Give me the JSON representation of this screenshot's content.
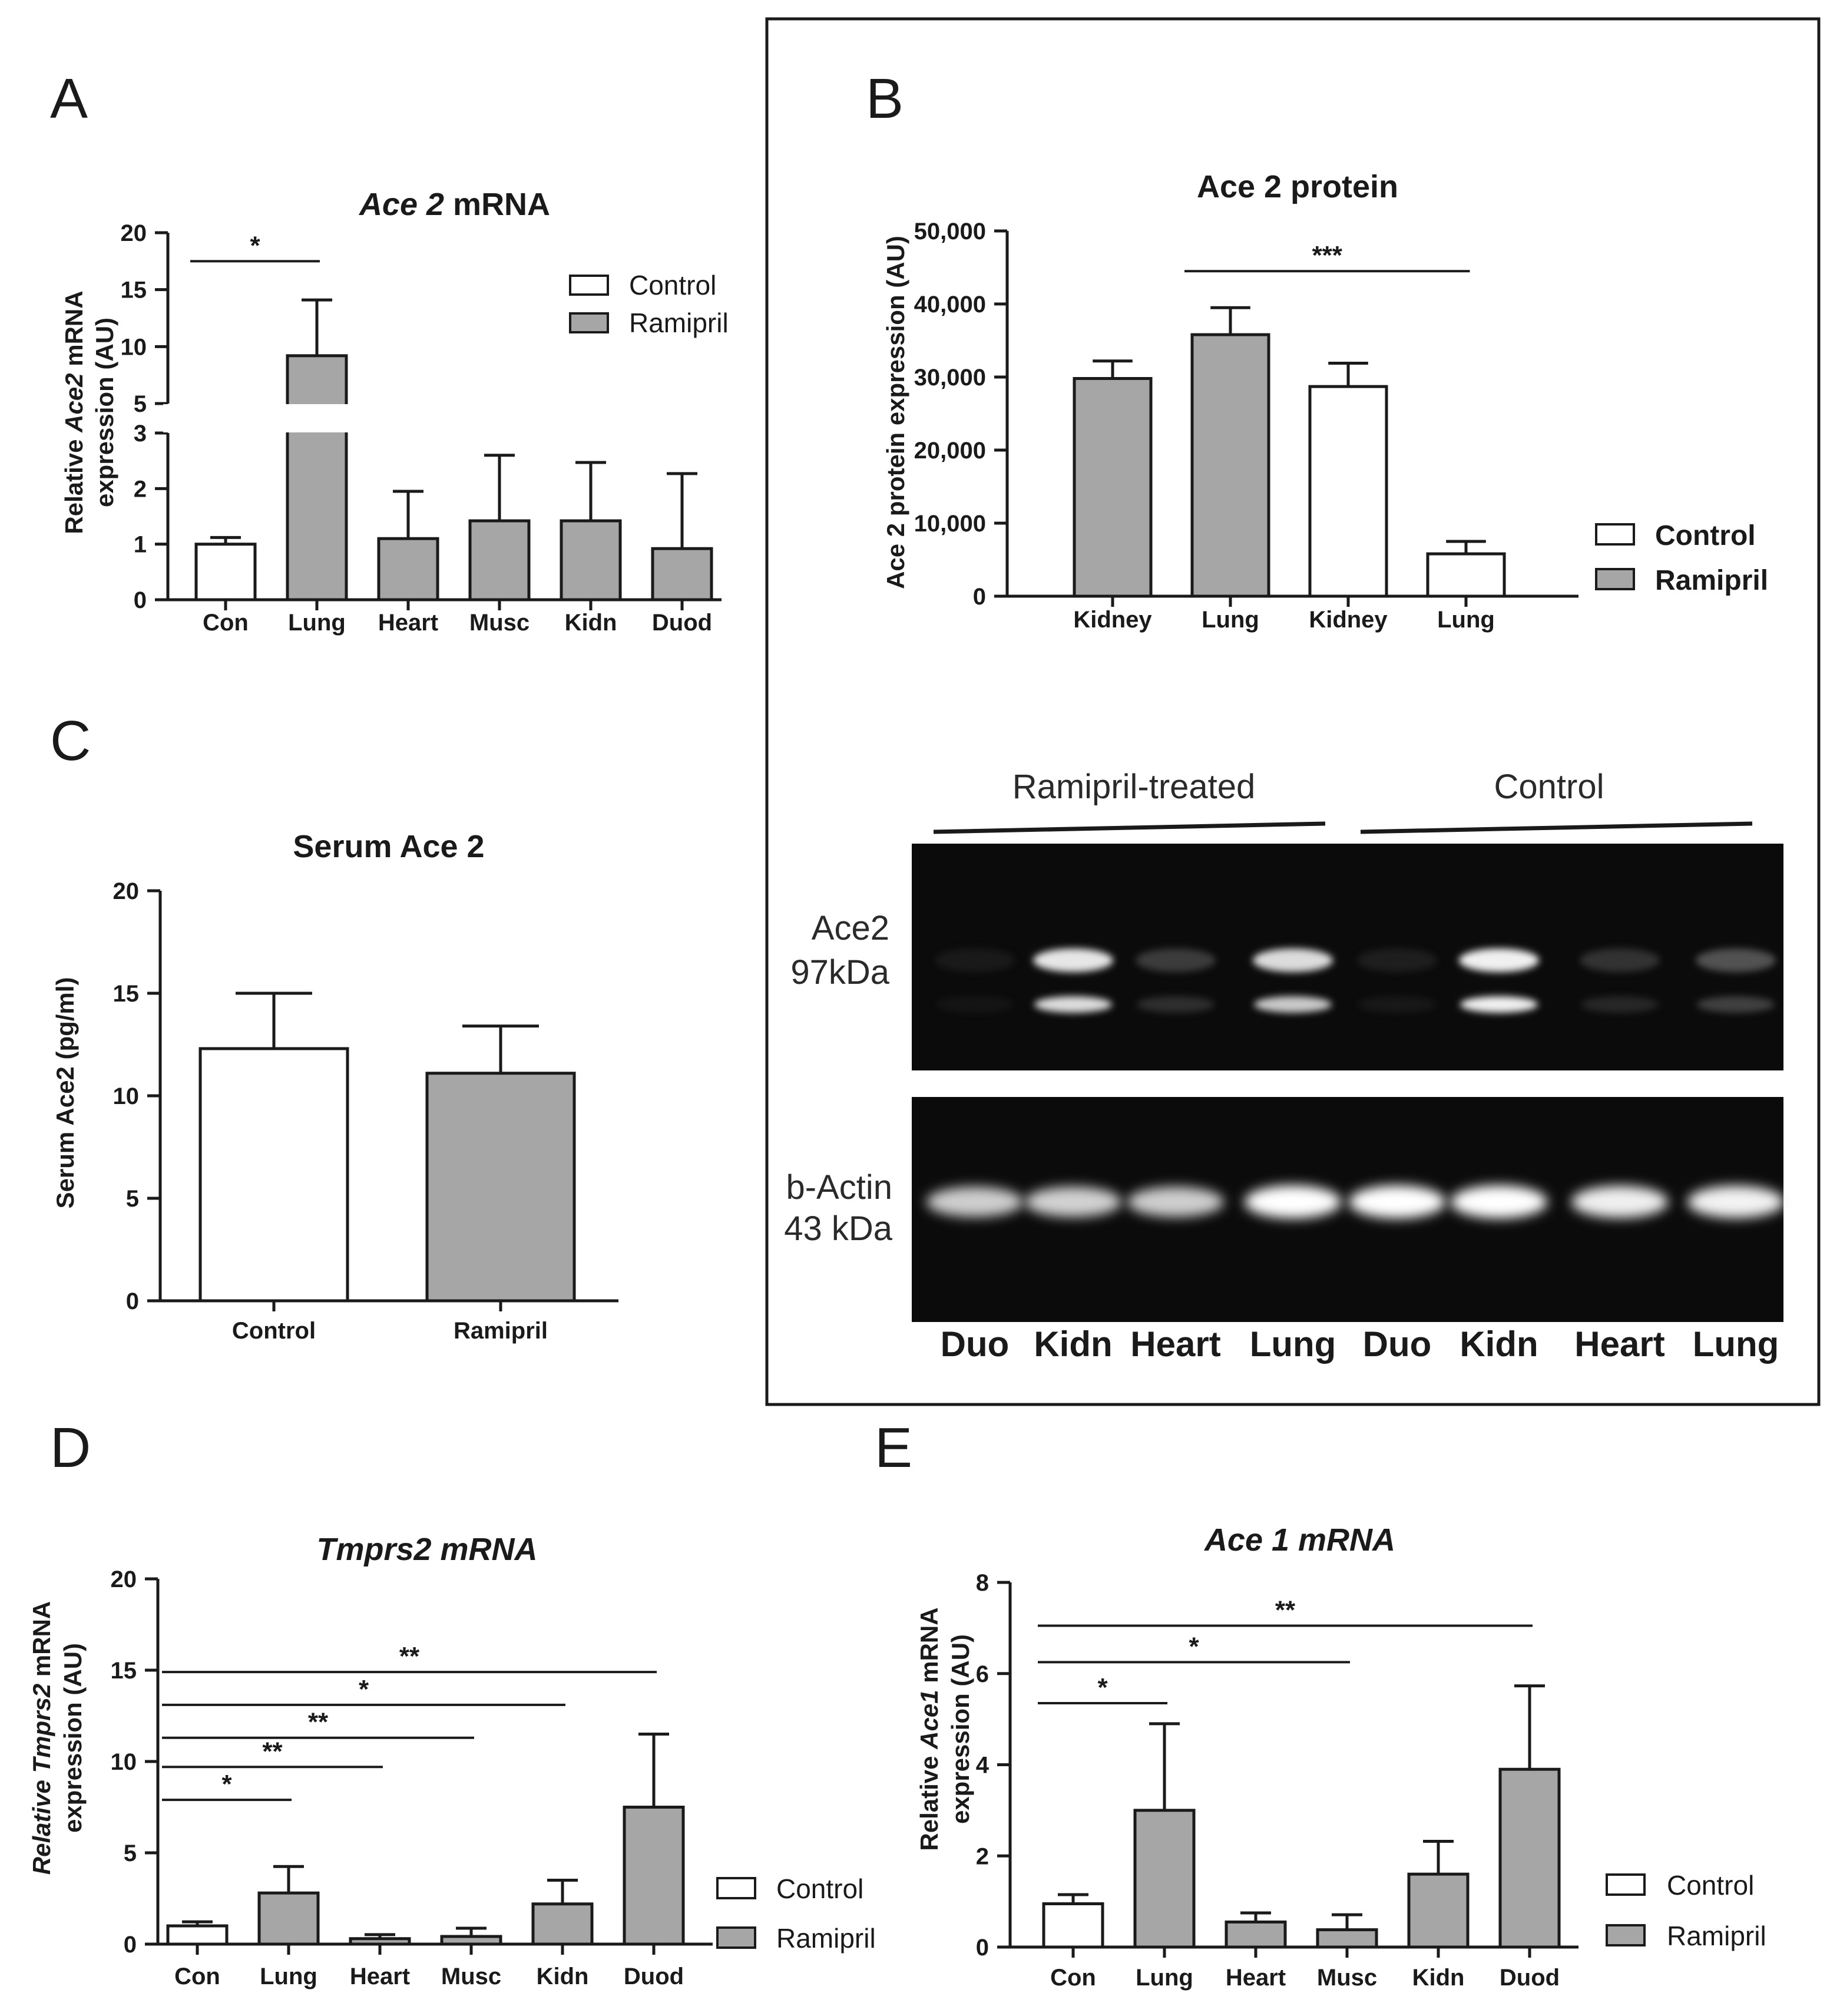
{
  "panels": {
    "A": "A",
    "B": "B",
    "C": "C",
    "D": "D",
    "E": "E"
  },
  "legend": {
    "control": "Control",
    "ramipril": "Ramipril"
  },
  "colors": {
    "control": "#ffffff",
    "ramipril": "#a6a6a6",
    "outline": "#1a1a1a",
    "blot_bg": "#0b0b0b"
  },
  "chart_data": [
    {
      "panel": "A",
      "type": "bar",
      "title_italic": "Ace 2",
      "title_rest": " mRNA",
      "ylabel_pre": "Relative ",
      "ylabel_italic": "Ace2",
      "ylabel_post": " mRNA",
      "ylabel_line2": "expression (AU)",
      "categories": [
        "Con",
        "Lung",
        "Heart",
        "Musc",
        "Kidn",
        "Duod"
      ],
      "groups": [
        "control",
        "ramipril",
        "ramipril",
        "ramipril",
        "ramipril",
        "ramipril"
      ],
      "values": [
        1.0,
        9.2,
        1.1,
        1.42,
        1.42,
        0.92
      ],
      "errors": [
        0.12,
        4.9,
        0.85,
        1.18,
        1.05,
        1.35
      ],
      "axis_break": {
        "lower": [
          0,
          3
        ],
        "upper": [
          5,
          20
        ]
      },
      "yticks_lower": [
        "0",
        "1",
        "2",
        "3"
      ],
      "yticks_upper": [
        "5",
        "10",
        "15",
        "20"
      ],
      "significance": [
        {
          "from": 0,
          "to": 1,
          "at": 17.5,
          "label": "*"
        }
      ]
    },
    {
      "panel": "B",
      "type": "bar",
      "title": "Ace 2 protein",
      "ylabel": "Ace 2 protein expression (AU)",
      "categories": [
        "Kidney",
        "Lung",
        "Kidney",
        "Lung"
      ],
      "groups": [
        "ramipril",
        "ramipril",
        "control",
        "control"
      ],
      "values": [
        29800,
        35800,
        28700,
        5800
      ],
      "errors": [
        2400,
        3700,
        3200,
        1700
      ],
      "ylim": [
        0,
        50000
      ],
      "yticks": [
        "0",
        "10,000",
        "20,000",
        "30,000",
        "40,000",
        "50,000"
      ],
      "significance": [
        {
          "from": 1,
          "to": 3,
          "at": 44500,
          "label": "***"
        }
      ]
    },
    {
      "panel": "C",
      "type": "bar",
      "title": "Serum Ace 2",
      "ylabel": "Serum Ace2 (pg/ml)",
      "categories": [
        "Control",
        "Ramipril"
      ],
      "groups": [
        "control",
        "ramipril"
      ],
      "values": [
        12.3,
        11.1
      ],
      "errors": [
        2.7,
        2.3
      ],
      "ylim": [
        0,
        20
      ],
      "yticks": [
        "0",
        "5",
        "10",
        "15",
        "20"
      ]
    },
    {
      "panel": "D",
      "type": "bar",
      "title": "Tmprs2 mRNA",
      "ylabel_pre": "Relative ",
      "ylabel_italic": "Tmprs2",
      "ylabel_post": " mRNA",
      "ylabel_line2": "expression (AU)",
      "categories": [
        "Con",
        "Lung",
        "Heart",
        "Musc",
        "Kidn",
        "Duod"
      ],
      "groups": [
        "control",
        "ramipril",
        "ramipril",
        "ramipril",
        "ramipril",
        "ramipril"
      ],
      "values": [
        1.0,
        2.8,
        0.3,
        0.42,
        2.2,
        7.5
      ],
      "errors": [
        0.22,
        1.45,
        0.22,
        0.45,
        1.3,
        4.0
      ],
      "ylim": [
        0,
        20
      ],
      "yticks": [
        "0",
        "5",
        "10",
        "15",
        "20"
      ],
      "significance": [
        {
          "from": 0,
          "to": 1,
          "at": 7.9,
          "label": "*"
        },
        {
          "from": 0,
          "to": 2,
          "at": 9.7,
          "label": "**"
        },
        {
          "from": 0,
          "to": 3,
          "at": 11.3,
          "label": "**"
        },
        {
          "from": 0,
          "to": 4,
          "at": 13.1,
          "label": "*"
        },
        {
          "from": 0,
          "to": 5,
          "at": 14.9,
          "label": "**"
        }
      ]
    },
    {
      "panel": "E",
      "type": "bar",
      "title": "Ace 1 mRNA",
      "ylabel_pre": "Relative ",
      "ylabel_italic": "Ace1",
      "ylabel_post": " mRNA",
      "ylabel_line2": "expression (AU)",
      "categories": [
        "Con",
        "Lung",
        "Heart",
        "Musc",
        "Kidn",
        "Duod"
      ],
      "groups": [
        "control",
        "ramipril",
        "ramipril",
        "ramipril",
        "ramipril",
        "ramipril"
      ],
      "values": [
        0.95,
        3.0,
        0.55,
        0.38,
        1.6,
        3.9
      ],
      "errors": [
        0.2,
        1.9,
        0.2,
        0.33,
        0.72,
        1.83
      ],
      "ylim": [
        0,
        8
      ],
      "yticks": [
        "0",
        "2",
        "4",
        "6",
        "8"
      ],
      "significance": [
        {
          "from": 0,
          "to": 1,
          "at": 5.35,
          "label": "*"
        },
        {
          "from": 0,
          "to": 3,
          "at": 6.25,
          "label": "*"
        },
        {
          "from": 0,
          "to": 5,
          "at": 7.05,
          "label": "**"
        }
      ]
    }
  ],
  "western_blot": {
    "group_labels": [
      "Ramipril-treated",
      "Control"
    ],
    "band_labels": [
      {
        "name": "Ace2",
        "size": "97kDa"
      },
      {
        "name": "b-Actin",
        "size": "43 kDa"
      }
    ],
    "lanes": [
      "Duo",
      "Kidn",
      "Heart",
      "Lung",
      "Duo",
      "Kidn",
      "Heart",
      "Lung"
    ],
    "ace2_intensity": [
      0.08,
      0.95,
      0.3,
      0.9,
      0.12,
      1.0,
      0.25,
      0.4
    ],
    "actin_intensity": [
      0.7,
      0.72,
      0.7,
      1.0,
      1.0,
      1.0,
      0.9,
      0.92
    ]
  }
}
